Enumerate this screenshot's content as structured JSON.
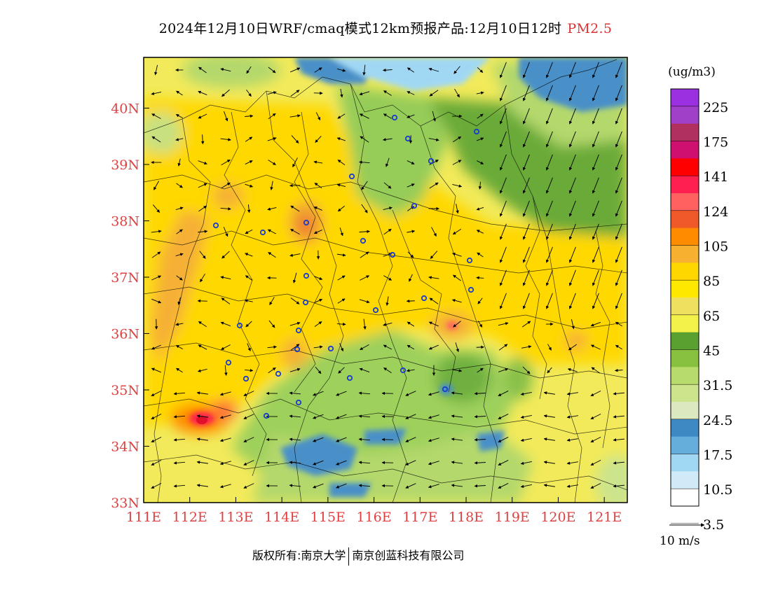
{
  "title": {
    "main": "2024年12月10日WRF/cmaq模式12km预报产品:12月10日12时",
    "product": "PM2.5"
  },
  "map": {
    "lon_range": [
      111,
      121.5
    ],
    "lat_range": [
      33,
      40.9
    ],
    "lon_ticks": [
      "111E",
      "112E",
      "113E",
      "114E",
      "115E",
      "116E",
      "117E",
      "118E",
      "119E",
      "120E",
      "121E"
    ],
    "lat_ticks": [
      "33N",
      "34N",
      "35N",
      "36N",
      "37N",
      "38N",
      "39N",
      "40N"
    ],
    "tick_color": "#e04040"
  },
  "legend": {
    "unit": "(ug/m3)",
    "labels": [
      "225",
      "175",
      "141",
      "124",
      "105",
      "85",
      "65",
      "45",
      "31.5",
      "24.5",
      "17.5",
      "10.5",
      "3.5"
    ],
    "colors": [
      "#9b30e0",
      "#a040c8",
      "#b03060",
      "#d01070",
      "#ff0000",
      "#ff2050",
      "#ff6060",
      "#f05a28",
      "#ff8c00",
      "#f8b030",
      "#ffd700",
      "#ffe800",
      "#f0e060",
      "#f2f24a",
      "#5aa030",
      "#88c040",
      "#b8dc6c",
      "#cce48c",
      "#dce8c0",
      "#3e88c4",
      "#64aedc",
      "#a0d8f4",
      "#d0eaf8",
      "#ffffff"
    ]
  },
  "wind_scale": {
    "label": "10 m/s"
  },
  "footer": {
    "owner": "版权所有:南京大学",
    "company": "南京创蓝科技有限公司"
  }
}
